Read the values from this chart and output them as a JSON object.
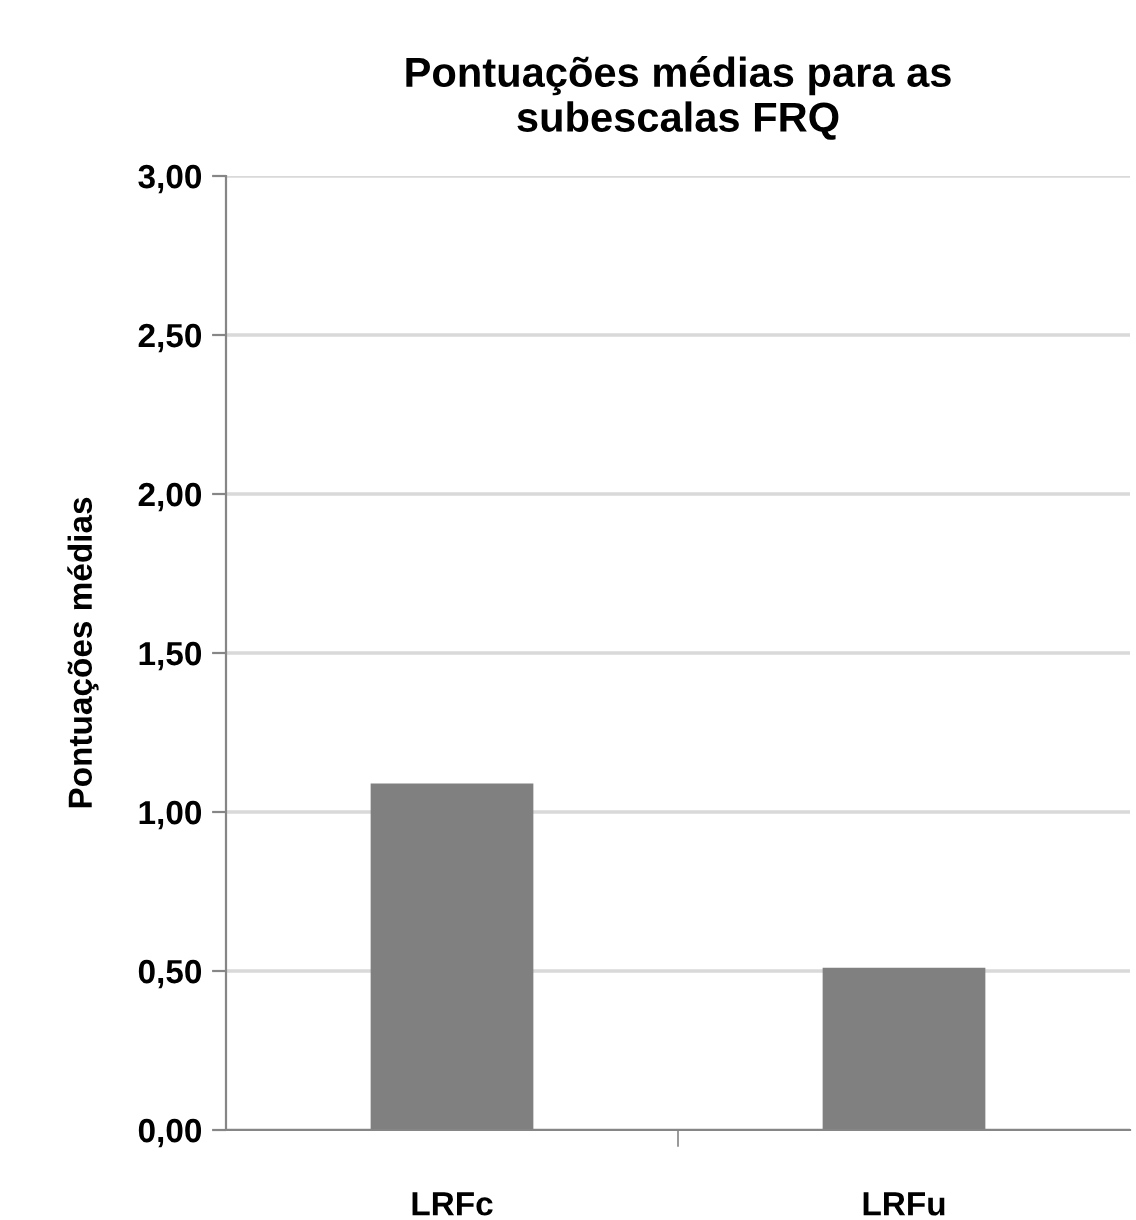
{
  "chart_data": {
    "type": "bar",
    "title": "Pontuações médias para as\nsubescalas FRQ",
    "ylabel": "Pontuações médias",
    "categories": [
      "LRFc",
      "LRFu"
    ],
    "values": [
      1.09,
      0.51
    ],
    "color": "#808080",
    "ylim": [
      0,
      3
    ],
    "yticks": [
      {
        "value": 0,
        "label": "0,00"
      },
      {
        "value": 0.5,
        "label": "0,50"
      },
      {
        "value": 1,
        "label": "1,00"
      },
      {
        "value": 1.5,
        "label": "1,50"
      },
      {
        "value": 2,
        "label": "2,00"
      },
      {
        "value": 2.5,
        "label": "2,50"
      },
      {
        "value": 3,
        "label": "3,00"
      }
    ],
    "grid": "y"
  }
}
